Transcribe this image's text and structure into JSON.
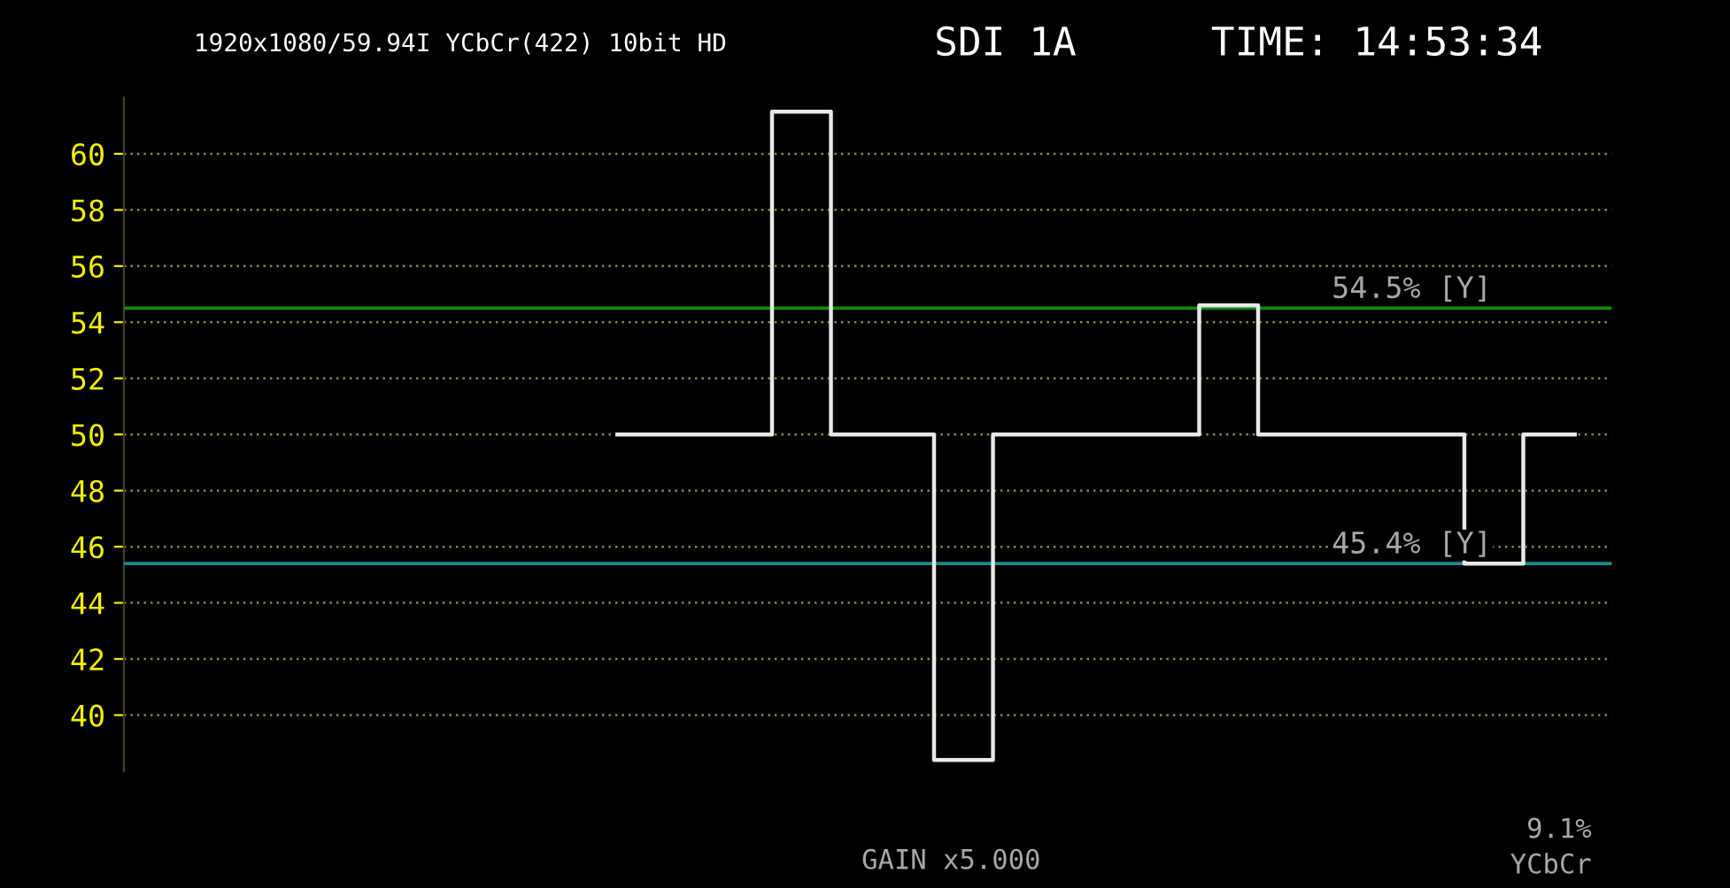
{
  "chart_data": {
    "type": "step",
    "annotations": [
      "1920x1080/59.94I YCbCr(422) 10bit HD",
      "SDI 1A",
      "TIME: 14:53:34",
      "GAIN x5.000",
      "9.1%",
      "YCbCr"
    ],
    "categories": [
      null,
      null,
      null,
      null,
      null,
      null,
      null,
      null,
      null,
      null,
      null,
      null,
      null,
      null,
      null,
      null,
      null,
      null,
      null,
      null,
      null,
      null,
      null,
      null,
      null,
      null,
      null,
      null,
      null,
      null,
      null,
      null,
      null,
      null,
      null,
      null,
      null,
      null,
      null,
      null,
      null,
      null,
      null,
      null,
      null,
      null,
      null,
      null,
      null,
      null,
      null,
      null,
      null,
      null,
      null,
      null,
      null,
      null,
      null,
      null,
      null,
      null,
      null,
      null,
      null,
      null
    ],
    "series": [
      {
        "color": "#e8e8e8",
        "values": [
          50,
          50,
          50,
          50,
          50,
          50,
          50,
          50,
          50,
          50,
          50,
          61.5,
          61.5,
          61.5,
          61.5,
          50,
          50,
          50,
          50,
          50,
          50,
          50,
          38.4,
          38.4,
          38.4,
          38.4,
          50,
          50,
          50,
          50,
          50,
          50,
          50,
          50,
          50,
          50,
          50,
          50,
          50,
          50,
          54.6,
          54.6,
          54.6,
          54.6,
          50,
          50,
          50,
          50,
          50,
          50,
          50,
          50,
          50,
          50,
          50,
          50,
          50,
          50,
          45.4,
          45.4,
          45.4,
          45.4,
          50,
          50,
          50,
          50
        ]
      }
    ],
    "ylim": [
      38,
      62
    ],
    "yticks": [
      40,
      42,
      44,
      46,
      48,
      50,
      52,
      54,
      56,
      58,
      60
    ],
    "grid": "y",
    "line_style": "solid",
    "marker": "none",
    "ref_lines": [
      {
        "axis": "y",
        "value": 54.5,
        "label": "54.5% [Y]",
        "color": "#0f8a0f"
      },
      {
        "axis": "y",
        "value": 45.4,
        "label": "45.4% [Y]",
        "color": "#1d8a8a"
      }
    ]
  }
}
